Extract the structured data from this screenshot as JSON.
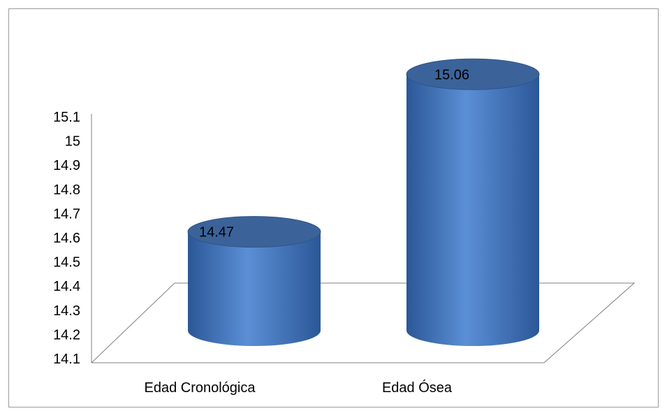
{
  "chart_data": {
    "type": "bar",
    "style": "3d-cylinder",
    "categories": [
      "Edad Cronológica",
      "Edad Ósea"
    ],
    "series": [
      {
        "values": [
          14.47,
          15.06
        ]
      }
    ],
    "data_labels": [
      "14.47",
      "15.06"
    ],
    "yticks": [
      "14.1",
      "14.2",
      "14.3",
      "14.4",
      "14.5",
      "14.6",
      "14.7",
      "14.8",
      "14.9",
      "15",
      "15.1"
    ],
    "ylim": [
      14.1,
      15.1
    ],
    "title": "",
    "xlabel": "",
    "ylabel": "",
    "legend": "none",
    "grid": false,
    "colors": {
      "bar_body": "#4f81bd",
      "bar_light": "#5b8fd6",
      "bar_dark": "#2b5797",
      "bar_top": "#3b639a",
      "bar_top_edge": "#2f5489",
      "axis": "#808080",
      "frame": "#9a9a9a"
    }
  }
}
